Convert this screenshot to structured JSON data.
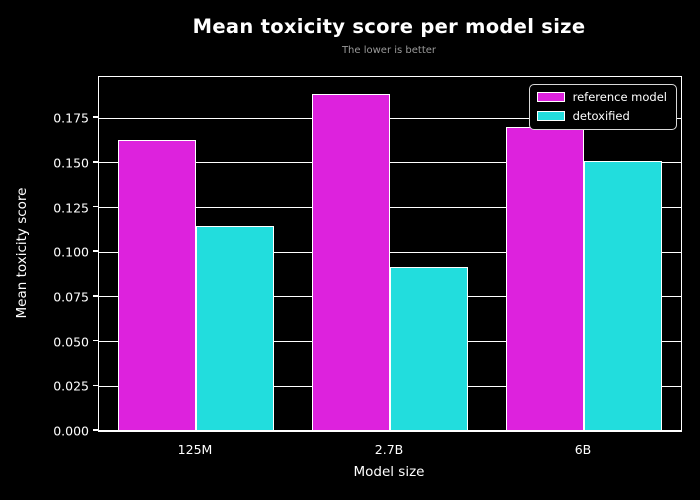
{
  "chart_data": {
    "type": "bar",
    "title": "Mean toxicity score per model size",
    "subtitle": "The lower is better",
    "xlabel": "Model size",
    "ylabel": "Mean toxicity score",
    "categories": [
      "125M",
      "2.7B",
      "6B"
    ],
    "series": [
      {
        "name": "reference model",
        "color": "#dd22dd",
        "values": [
          0.1627,
          0.1884,
          0.1699
        ]
      },
      {
        "name": "detoxified",
        "color": "#22dddd",
        "values": [
          0.1148,
          0.0916,
          0.151
        ]
      }
    ],
    "ylim": [
      0,
      0.198
    ],
    "yticks": [
      0.0,
      0.025,
      0.05,
      0.075,
      0.1,
      0.125,
      0.15,
      0.175
    ],
    "ytick_decimals": 3,
    "grid": true,
    "legend_position": "upper right",
    "colors": {
      "background": "#000000",
      "text": "#ffffff",
      "subtitle_text": "#9a9a9a",
      "grid": "#ffffff",
      "bar_edge": "#ffffff",
      "legend_border": "#d9d9d9"
    }
  }
}
